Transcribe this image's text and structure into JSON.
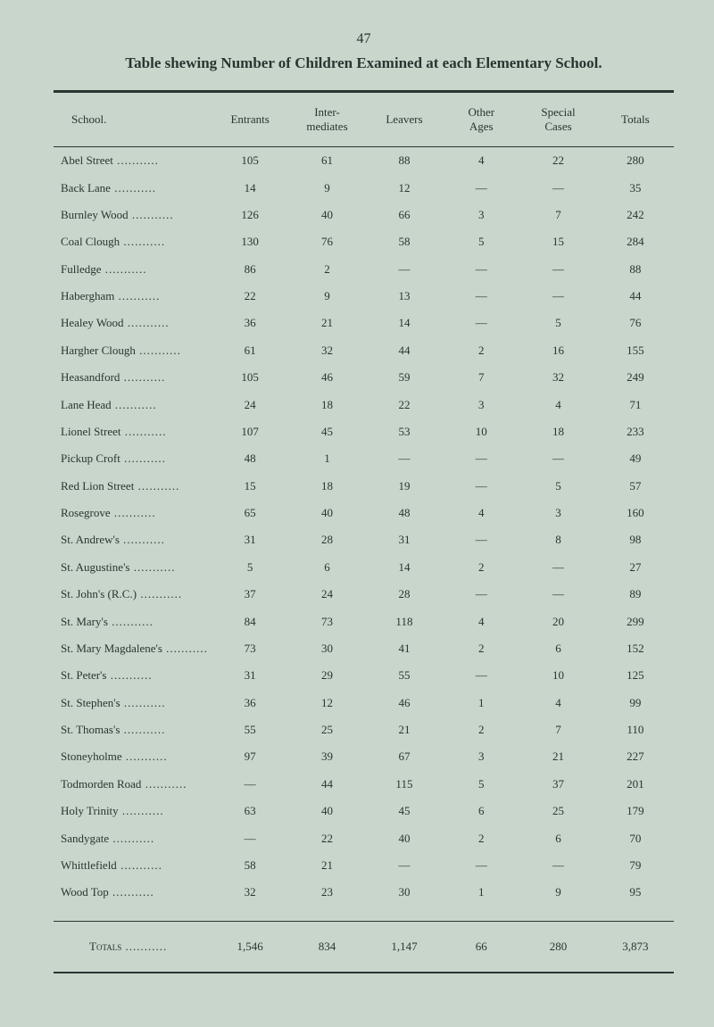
{
  "page_number": "47",
  "title": "Table shewing Number of Children Examined at each Elementary School.",
  "headers": {
    "school": "School.",
    "entrants": "Entrants",
    "intermediates": "Inter-\nmediates",
    "leavers": "Leavers",
    "other_ages": "Other\nAges",
    "special_cases": "Special\nCases",
    "totals": "Totals"
  },
  "rows": [
    {
      "school": "Abel Street",
      "entrants": "105",
      "intermediates": "61",
      "leavers": "88",
      "other_ages": "4",
      "special_cases": "22",
      "totals": "280"
    },
    {
      "school": "Back Lane",
      "entrants": "14",
      "intermediates": "9",
      "leavers": "12",
      "other_ages": "—",
      "special_cases": "—",
      "totals": "35"
    },
    {
      "school": "Burnley Wood",
      "entrants": "126",
      "intermediates": "40",
      "leavers": "66",
      "other_ages": "3",
      "special_cases": "7",
      "totals": "242"
    },
    {
      "school": "Coal Clough",
      "entrants": "130",
      "intermediates": "76",
      "leavers": "58",
      "other_ages": "5",
      "special_cases": "15",
      "totals": "284"
    },
    {
      "school": "Fulledge",
      "entrants": "86",
      "intermediates": "2",
      "leavers": "—",
      "other_ages": "—",
      "special_cases": "—",
      "totals": "88"
    },
    {
      "school": "Habergham",
      "entrants": "22",
      "intermediates": "9",
      "leavers": "13",
      "other_ages": "—",
      "special_cases": "—",
      "totals": "44"
    },
    {
      "school": "Healey Wood",
      "entrants": "36",
      "intermediates": "21",
      "leavers": "14",
      "other_ages": "—",
      "special_cases": "5",
      "totals": "76"
    },
    {
      "school": "Hargher Clough",
      "entrants": "61",
      "intermediates": "32",
      "leavers": "44",
      "other_ages": "2",
      "special_cases": "16",
      "totals": "155"
    },
    {
      "school": "Heasandford",
      "entrants": "105",
      "intermediates": "46",
      "leavers": "59",
      "other_ages": "7",
      "special_cases": "32",
      "totals": "249"
    },
    {
      "school": "Lane Head",
      "entrants": "24",
      "intermediates": "18",
      "leavers": "22",
      "other_ages": "3",
      "special_cases": "4",
      "totals": "71"
    },
    {
      "school": "Lionel Street",
      "entrants": "107",
      "intermediates": "45",
      "leavers": "53",
      "other_ages": "10",
      "special_cases": "18",
      "totals": "233"
    },
    {
      "school": "Pickup Croft",
      "entrants": "48",
      "intermediates": "1",
      "leavers": "—",
      "other_ages": "—",
      "special_cases": "—",
      "totals": "49"
    },
    {
      "school": "Red Lion Street",
      "entrants": "15",
      "intermediates": "18",
      "leavers": "19",
      "other_ages": "—",
      "special_cases": "5",
      "totals": "57"
    },
    {
      "school": "Rosegrove",
      "entrants": "65",
      "intermediates": "40",
      "leavers": "48",
      "other_ages": "4",
      "special_cases": "3",
      "totals": "160"
    },
    {
      "school": "St. Andrew's",
      "entrants": "31",
      "intermediates": "28",
      "leavers": "31",
      "other_ages": "—",
      "special_cases": "8",
      "totals": "98"
    },
    {
      "school": "St. Augustine's",
      "entrants": "5",
      "intermediates": "6",
      "leavers": "14",
      "other_ages": "2",
      "special_cases": "—",
      "totals": "27"
    },
    {
      "school": "St. John's (R.C.)",
      "entrants": "37",
      "intermediates": "24",
      "leavers": "28",
      "other_ages": "—",
      "special_cases": "—",
      "totals": "89"
    },
    {
      "school": "St. Mary's",
      "entrants": "84",
      "intermediates": "73",
      "leavers": "118",
      "other_ages": "4",
      "special_cases": "20",
      "totals": "299"
    },
    {
      "school": "St. Mary Magdalene's",
      "entrants": "73",
      "intermediates": "30",
      "leavers": "41",
      "other_ages": "2",
      "special_cases": "6",
      "totals": "152"
    },
    {
      "school": "St. Peter's",
      "entrants": "31",
      "intermediates": "29",
      "leavers": "55",
      "other_ages": "—",
      "special_cases": "10",
      "totals": "125"
    },
    {
      "school": "St. Stephen's",
      "entrants": "36",
      "intermediates": "12",
      "leavers": "46",
      "other_ages": "1",
      "special_cases": "4",
      "totals": "99"
    },
    {
      "school": "St. Thomas's",
      "entrants": "55",
      "intermediates": "25",
      "leavers": "21",
      "other_ages": "2",
      "special_cases": "7",
      "totals": "110"
    },
    {
      "school": "Stoneyholme",
      "entrants": "97",
      "intermediates": "39",
      "leavers": "67",
      "other_ages": "3",
      "special_cases": "21",
      "totals": "227"
    },
    {
      "school": "Todmorden Road",
      "entrants": "—",
      "intermediates": "44",
      "leavers": "115",
      "other_ages": "5",
      "special_cases": "37",
      "totals": "201"
    },
    {
      "school": "Holy Trinity",
      "entrants": "63",
      "intermediates": "40",
      "leavers": "45",
      "other_ages": "6",
      "special_cases": "25",
      "totals": "179"
    },
    {
      "school": "Sandygate",
      "entrants": "—",
      "intermediates": "22",
      "leavers": "40",
      "other_ages": "2",
      "special_cases": "6",
      "totals": "70"
    },
    {
      "school": "Whittlefield",
      "entrants": "58",
      "intermediates": "21",
      "leavers": "—",
      "other_ages": "—",
      "special_cases": "—",
      "totals": "79"
    },
    {
      "school": "Wood Top",
      "entrants": "32",
      "intermediates": "23",
      "leavers": "30",
      "other_ages": "1",
      "special_cases": "9",
      "totals": "95"
    }
  ],
  "totals_row": {
    "label": "Totals",
    "entrants": "1,546",
    "intermediates": "834",
    "leavers": "1,147",
    "other_ages": "66",
    "special_cases": "280",
    "totals": "3,873"
  },
  "styling": {
    "background_color": "#c8d6cc",
    "text_color": "#2a3530",
    "dot_leader": " ..........."
  }
}
